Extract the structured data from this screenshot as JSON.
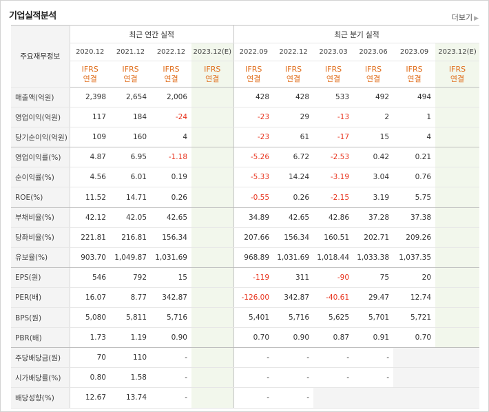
{
  "title": "기업실적분석",
  "more_label": "더보기",
  "header": {
    "main_label": "주요재무정보",
    "annual_label": "최근 연간 실적",
    "quarter_label": "최근 분기 실적",
    "annual_periods": [
      "2020.12",
      "2021.12",
      "2022.12",
      "2023.12(E)"
    ],
    "quarter_periods": [
      "2022.09",
      "2022.12",
      "2023.03",
      "2023.06",
      "2023.09",
      "2023.12(E)"
    ],
    "standard_line1": "IFRS",
    "standard_line2": "연결"
  },
  "rows": [
    {
      "label": "매출액(억원)",
      "annual": [
        "2,398",
        "2,654",
        "2,006",
        ""
      ],
      "quarter": [
        "428",
        "428",
        "533",
        "492",
        "494",
        ""
      ]
    },
    {
      "label": "영업이익(억원)",
      "annual": [
        "117",
        "184",
        "-24",
        ""
      ],
      "quarter": [
        "-23",
        "29",
        "-13",
        "2",
        "1",
        ""
      ]
    },
    {
      "label": "당기순이익(억원)",
      "annual": [
        "109",
        "160",
        "4",
        ""
      ],
      "quarter": [
        "-23",
        "61",
        "-17",
        "15",
        "4",
        ""
      ]
    },
    {
      "label": "영업이익률(%)",
      "annual": [
        "4.87",
        "6.95",
        "-1.18",
        ""
      ],
      "quarter": [
        "-5.26",
        "6.72",
        "-2.53",
        "0.42",
        "0.21",
        ""
      ]
    },
    {
      "label": "순이익률(%)",
      "annual": [
        "4.56",
        "6.01",
        "0.19",
        ""
      ],
      "quarter": [
        "-5.33",
        "14.24",
        "-3.19",
        "3.04",
        "0.76",
        ""
      ]
    },
    {
      "label": "ROE(%)",
      "annual": [
        "11.52",
        "14.71",
        "0.26",
        ""
      ],
      "quarter": [
        "-0.55",
        "0.26",
        "-2.15",
        "3.19",
        "5.75",
        ""
      ]
    },
    {
      "label": "부채비율(%)",
      "annual": [
        "42.12",
        "42.05",
        "42.65",
        ""
      ],
      "quarter": [
        "34.89",
        "42.65",
        "42.86",
        "37.28",
        "37.38",
        ""
      ]
    },
    {
      "label": "당좌비율(%)",
      "annual": [
        "221.81",
        "216.81",
        "156.34",
        ""
      ],
      "quarter": [
        "207.66",
        "156.34",
        "160.51",
        "202.71",
        "209.26",
        ""
      ]
    },
    {
      "label": "유보율(%)",
      "annual": [
        "903.70",
        "1,049.87",
        "1,031.69",
        ""
      ],
      "quarter": [
        "968.89",
        "1,031.69",
        "1,018.44",
        "1,033.38",
        "1,037.35",
        ""
      ]
    },
    {
      "label": "EPS(원)",
      "annual": [
        "546",
        "792",
        "15",
        ""
      ],
      "quarter": [
        "-119",
        "311",
        "-90",
        "75",
        "20",
        ""
      ]
    },
    {
      "label": "PER(배)",
      "annual": [
        "16.07",
        "8.77",
        "342.87",
        ""
      ],
      "quarter": [
        "-126.00",
        "342.87",
        "-40.61",
        "29.47",
        "12.74",
        ""
      ]
    },
    {
      "label": "BPS(원)",
      "annual": [
        "5,080",
        "5,811",
        "5,716",
        ""
      ],
      "quarter": [
        "5,401",
        "5,716",
        "5,625",
        "5,701",
        "5,721",
        ""
      ]
    },
    {
      "label": "PBR(배)",
      "annual": [
        "1.73",
        "1.19",
        "0.90",
        ""
      ],
      "quarter": [
        "0.70",
        "0.90",
        "0.87",
        "0.91",
        "0.70",
        ""
      ]
    },
    {
      "label": "주당배당금(원)",
      "annual": [
        "70",
        "110",
        "-",
        ""
      ],
      "quarter": [
        "-",
        "-",
        "-",
        "-",
        "",
        ""
      ]
    },
    {
      "label": "시가배당률(%)",
      "annual": [
        "0.80",
        "1.58",
        "-",
        ""
      ],
      "quarter": [
        "-",
        "-",
        "-",
        "-",
        "",
        ""
      ]
    },
    {
      "label": "배당성향(%)",
      "annual": [
        "12.67",
        "13.74",
        "-",
        ""
      ],
      "quarter": [
        "-",
        "-",
        "",
        "",
        "",
        ""
      ]
    }
  ],
  "colors": {
    "negative": "#e8331d",
    "ifrs": "#e06e1c",
    "estimate_bg": "#f2f7ec"
  }
}
